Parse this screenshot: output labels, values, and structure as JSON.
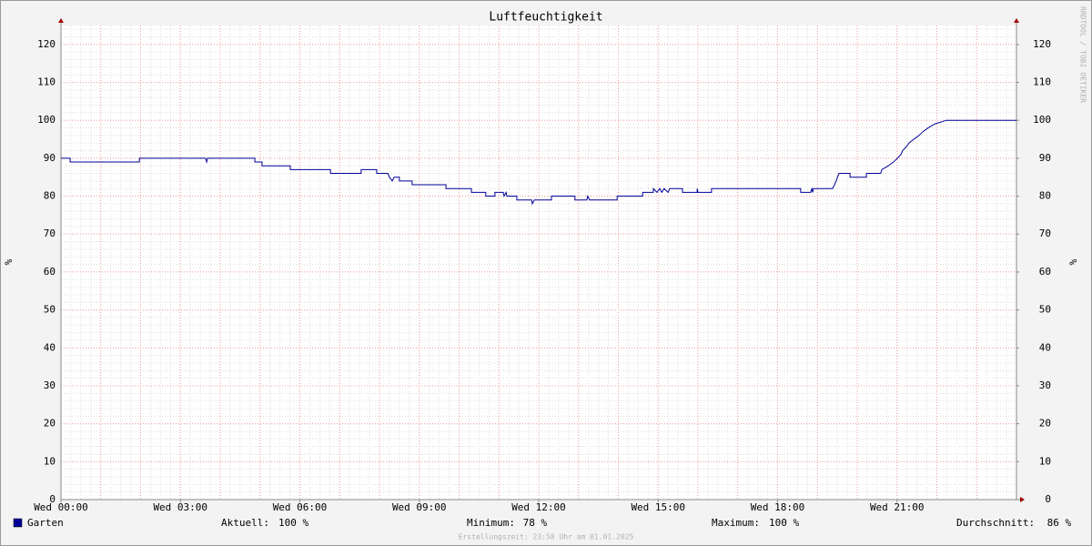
{
  "chart_data": {
    "type": "line",
    "title": "Luftfeuchtigkeit",
    "ylabel": "%",
    "y2label": "%",
    "watermark": "RRDTOOL / TOBI OETIKER",
    "footer": "Erstellungszeit: 23:58 Uhr am 01.01.2025",
    "xlim": [
      0,
      24
    ],
    "xticks": [
      {
        "value": 0,
        "label": "Wed 00:00"
      },
      {
        "value": 3,
        "label": "Wed 03:00"
      },
      {
        "value": 6,
        "label": "Wed 06:00"
      },
      {
        "value": 9,
        "label": "Wed 09:00"
      },
      {
        "value": 12,
        "label": "Wed 12:00"
      },
      {
        "value": 15,
        "label": "Wed 15:00"
      },
      {
        "value": 18,
        "label": "Wed 18:00"
      },
      {
        "value": 21,
        "label": "Wed 21:00"
      }
    ],
    "ylim": [
      0,
      125
    ],
    "yticks": [
      0,
      10,
      20,
      30,
      40,
      50,
      60,
      70,
      80,
      90,
      100,
      110,
      120
    ],
    "y2lim": [
      0,
      125
    ],
    "y2ticks": [
      0,
      10,
      20,
      30,
      40,
      50,
      60,
      70,
      80,
      90,
      100,
      110,
      120
    ],
    "grid": true,
    "x": [
      0,
      0.23,
      0.23,
      1.97,
      1.97,
      3.63,
      3.66,
      3.68,
      4.87,
      4.87,
      5.05,
      5.05,
      5.76,
      5.76,
      6.77,
      6.77,
      7.54,
      7.54,
      7.93,
      7.93,
      8.21,
      8.25,
      8.32,
      8.37,
      8.5,
      8.5,
      8.82,
      8.82,
      9.67,
      9.67,
      10.31,
      10.31,
      10.67,
      10.67,
      10.9,
      10.9,
      11.11,
      11.13,
      11.18,
      11.2,
      11.45,
      11.45,
      11.82,
      11.84,
      11.89,
      12.32,
      12.32,
      12.91,
      12.91,
      13.21,
      13.23,
      13.28,
      13.97,
      13.97,
      14.61,
      14.61,
      14.88,
      14.88,
      14.97,
      15.04,
      15.09,
      15.15,
      15.25,
      15.29,
      15.61,
      15.61,
      15.98,
      15.98,
      16.0,
      16.34,
      16.34,
      18.58,
      18.58,
      18.83,
      18.86,
      18.88,
      18.9,
      19.38,
      19.43,
      19.47,
      19.54,
      19.82,
      19.82,
      20.23,
      20.23,
      20.59,
      20.62,
      20.78,
      20.91,
      21.01,
      21.1,
      21.14,
      21.23,
      21.3,
      21.42,
      21.55,
      21.65,
      21.78,
      21.94,
      22.24,
      24
    ],
    "series": [
      {
        "name": "Garten",
        "color": "#000099",
        "values": [
          90,
          90,
          89,
          89,
          90,
          90,
          89,
          90,
          90,
          89,
          89,
          88,
          88,
          87,
          87,
          86,
          86,
          87,
          87,
          86,
          86,
          85,
          84,
          85,
          85,
          84,
          84,
          83,
          83,
          82,
          82,
          81,
          81,
          80,
          80,
          81,
          81,
          80,
          81,
          80,
          80,
          79,
          79,
          78,
          79,
          79,
          80,
          80,
          79,
          79,
          80,
          79,
          79,
          80,
          80,
          81,
          81,
          82,
          81,
          82,
          81,
          82,
          81,
          82,
          82,
          81,
          81,
          82,
          81,
          81,
          82,
          82,
          81,
          81,
          82,
          81,
          82,
          82,
          83,
          84,
          86,
          86,
          85,
          85,
          86,
          86,
          87,
          88,
          89,
          90,
          91,
          92,
          93,
          94,
          95,
          96,
          97,
          98,
          99,
          100,
          100
        ]
      }
    ],
    "stats": [
      {
        "label": "Aktuell:",
        "text": "100 %"
      },
      {
        "label": "Minimum:",
        "text": " 78 %"
      },
      {
        "label": "Maximum:",
        "text": "100 %"
      },
      {
        "label": "Durchschnitt:",
        "text": " 86 %"
      }
    ]
  }
}
